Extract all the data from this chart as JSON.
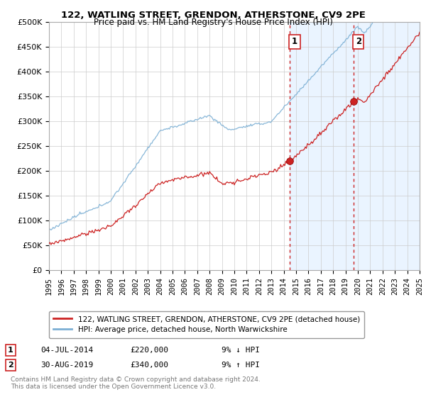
{
  "title": "122, WATLING STREET, GRENDON, ATHERSTONE, CV9 2PE",
  "subtitle": "Price paid vs. HM Land Registry's House Price Index (HPI)",
  "legend_line1": "122, WATLING STREET, GRENDON, ATHERSTONE, CV9 2PE (detached house)",
  "legend_line2": "HPI: Average price, detached house, North Warwickshire",
  "annotation1_label": "1",
  "annotation1_date": "04-JUL-2014",
  "annotation1_price": "£220,000",
  "annotation1_hpi": "9% ↓ HPI",
  "annotation2_label": "2",
  "annotation2_date": "30-AUG-2019",
  "annotation2_price": "£340,000",
  "annotation2_hpi": "9% ↑ HPI",
  "footnote": "Contains HM Land Registry data © Crown copyright and database right 2024.\nThis data is licensed under the Open Government Licence v3.0.",
  "price_color": "#cc2222",
  "hpi_color": "#7bafd4",
  "shading_color": "#ddeeff",
  "annotation_vline_color": "#cc2222",
  "background_color": "#ffffff",
  "ylim": [
    0,
    500000
  ],
  "yticks": [
    0,
    50000,
    100000,
    150000,
    200000,
    250000,
    300000,
    350000,
    400000,
    450000,
    500000
  ],
  "start_year": 1995,
  "end_year": 2025,
  "sale1_t": 2014.5,
  "sale1_price": 220000,
  "sale2_t": 2019.667,
  "sale2_price": 340000
}
